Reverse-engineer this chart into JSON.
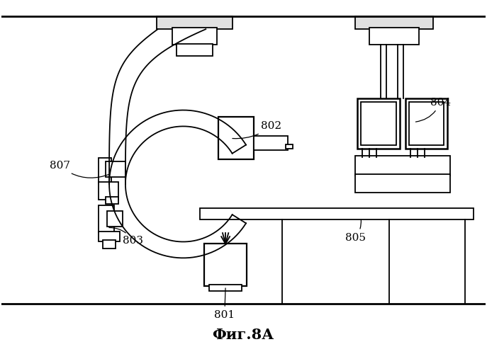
{
  "title": "Фиг.8А",
  "bg_color": "#ffffff",
  "line_color": "#000000",
  "fig_width": 6.87,
  "fig_height": 5.0
}
